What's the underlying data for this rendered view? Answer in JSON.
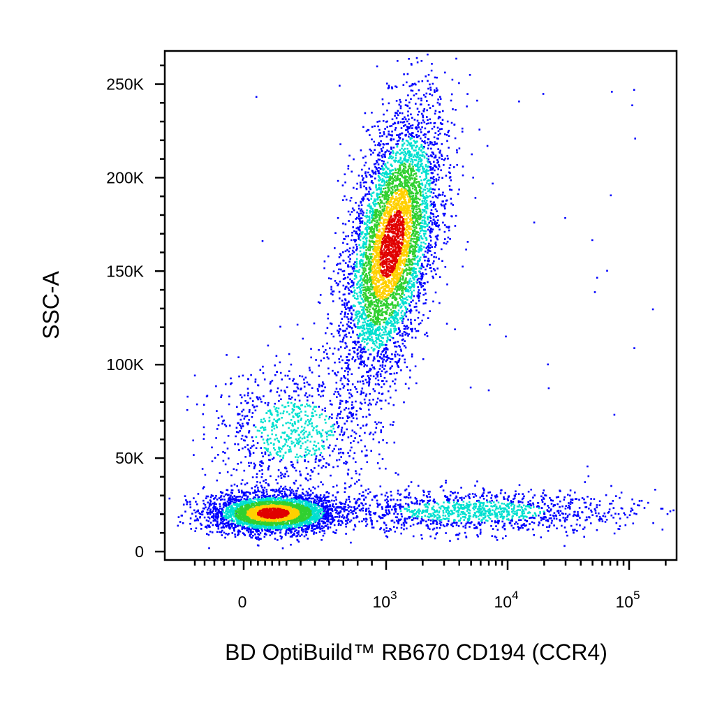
{
  "chart_data": {
    "type": "scatter",
    "style": "flow-cytometry density dot plot (blue-cyan-green-yellow-red)",
    "xlabel": "BD OptiBuild™ RB670 CD194 (CCR4)",
    "ylabel": "SSC-A",
    "x_scale": "biexponential",
    "x_ticks": [
      {
        "value": 0,
        "base": "0",
        "exp": ""
      },
      {
        "value": 1000,
        "base": "10",
        "exp": "3"
      },
      {
        "value": 10000,
        "base": "10",
        "exp": "4"
      },
      {
        "value": 100000,
        "base": "10",
        "exp": "5"
      }
    ],
    "y_ticks": [
      {
        "value": 0,
        "label": "0"
      },
      {
        "value": 50000,
        "label": "50K"
      },
      {
        "value": 100000,
        "label": "100K"
      },
      {
        "value": 150000,
        "label": "150K"
      },
      {
        "value": 200000,
        "label": "200K"
      },
      {
        "value": 250000,
        "label": "250K"
      }
    ],
    "ylim": [
      0,
      262144
    ],
    "xlim": [
      -300,
      200000
    ],
    "populations": [
      {
        "name": "",
        "x_center": 200,
        "y_center": 21000,
        "count": 3600,
        "density": "high"
      },
      {
        "name": "",
        "x_center": 1100,
        "y_center": 165000,
        "count": 5200,
        "density": "high"
      },
      {
        "name": "",
        "x_center": 350,
        "y_center": 65000,
        "count": 900,
        "density": "low"
      },
      {
        "name": "",
        "x_center": 5000,
        "y_center": 22000,
        "count": 1300,
        "density": "low"
      }
    ],
    "colors": {
      "low": "#0000ff",
      "mid": "#00e0d0",
      "mid2": "#30d030",
      "high2": "#ffd000",
      "high": "#e00000"
    },
    "grid": false,
    "legend": "none"
  }
}
